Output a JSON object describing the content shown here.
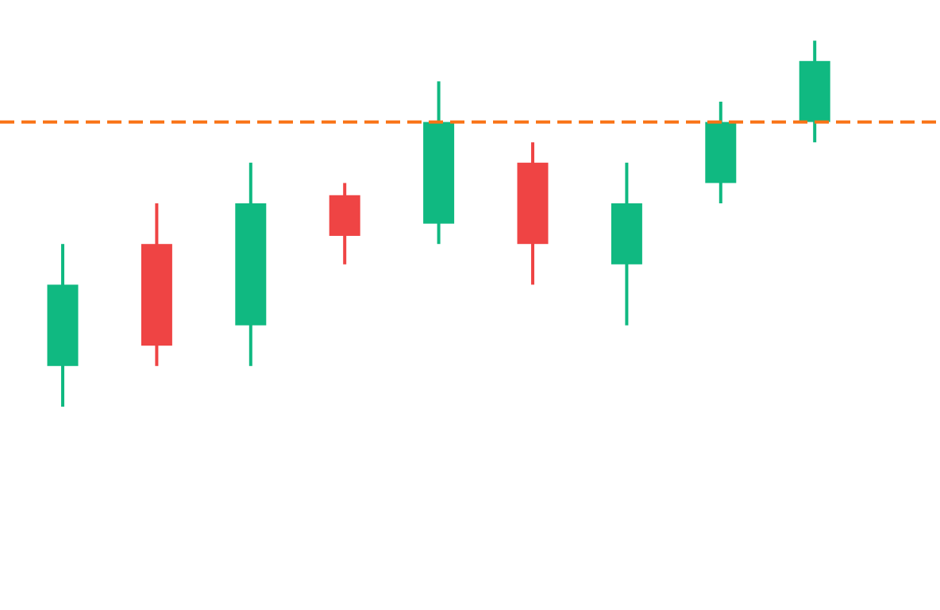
{
  "chart_data": {
    "type": "candlestick",
    "title": "",
    "xlabel": "",
    "ylabel": "",
    "axes_visible": false,
    "grid": false,
    "ylim": [
      -10,
      20
    ],
    "candles": [
      {
        "open": 2,
        "high": 8,
        "low": 0,
        "close": 6
      },
      {
        "open": 8,
        "high": 10,
        "low": 2,
        "close": 3
      },
      {
        "open": 4,
        "high": 12,
        "low": 2,
        "close": 10
      },
      {
        "open": 10.4,
        "high": 11,
        "low": 7,
        "close": 8.4
      },
      {
        "open": 9,
        "high": 16,
        "low": 8,
        "close": 14
      },
      {
        "open": 12,
        "high": 13,
        "low": 6,
        "close": 8
      },
      {
        "open": 7,
        "high": 12,
        "low": 4,
        "close": 10
      },
      {
        "open": 11,
        "high": 15,
        "low": 10,
        "close": 14
      },
      {
        "open": 14,
        "high": 18,
        "low": 13,
        "close": 17
      }
    ],
    "reference_line": {
      "value": 14,
      "style": "dashed",
      "color": "#f97316"
    },
    "colors": {
      "up": "#10b981",
      "down": "#ef4444"
    }
  }
}
